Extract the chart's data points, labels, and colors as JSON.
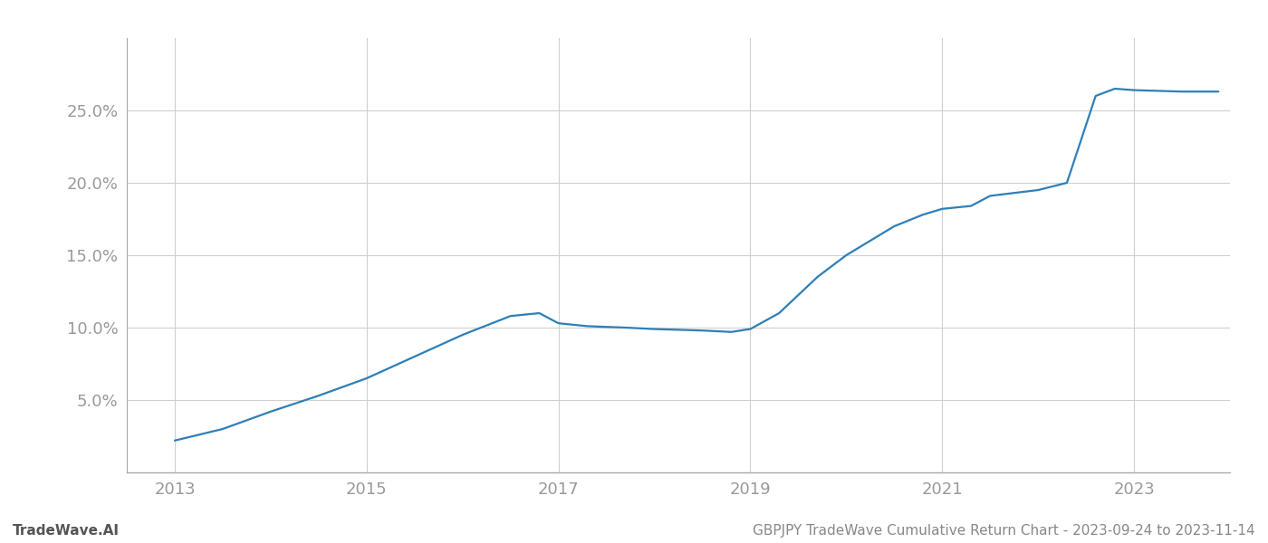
{
  "x_years": [
    2013.0,
    2013.5,
    2014.0,
    2014.5,
    2015.0,
    2015.5,
    2016.0,
    2016.5,
    2016.8,
    2017.0,
    2017.3,
    2017.7,
    2018.0,
    2018.5,
    2018.8,
    2019.0,
    2019.3,
    2019.7,
    2020.0,
    2020.3,
    2020.5,
    2020.8,
    2021.0,
    2021.3,
    2021.5,
    2022.0,
    2022.3,
    2022.6,
    2022.8,
    2023.0,
    2023.5,
    2023.88
  ],
  "y_values": [
    0.022,
    0.03,
    0.042,
    0.053,
    0.065,
    0.08,
    0.095,
    0.108,
    0.11,
    0.103,
    0.101,
    0.1,
    0.099,
    0.098,
    0.097,
    0.099,
    0.11,
    0.135,
    0.15,
    0.162,
    0.17,
    0.178,
    0.182,
    0.184,
    0.191,
    0.195,
    0.2,
    0.26,
    0.265,
    0.264,
    0.263,
    0.263
  ],
  "line_color": "#2e7fb8",
  "line_width": 1.6,
  "background_color": "#ffffff",
  "grid_color": "#d0d0d0",
  "xticks": [
    2013,
    2015,
    2017,
    2019,
    2021,
    2023
  ],
  "yticks": [
    0.05,
    0.1,
    0.15,
    0.2,
    0.25
  ],
  "ylim": [
    0.0,
    0.3
  ],
  "xlim": [
    2012.5,
    2024.0
  ],
  "footer_left": "TradeWave.AI",
  "footer_right": "GBPJPY TradeWave Cumulative Return Chart - 2023-09-24 to 2023-11-14",
  "tick_label_color": "#999999",
  "tick_fontsize": 13,
  "footer_fontsize": 11,
  "spine_color": "#aaaaaa"
}
